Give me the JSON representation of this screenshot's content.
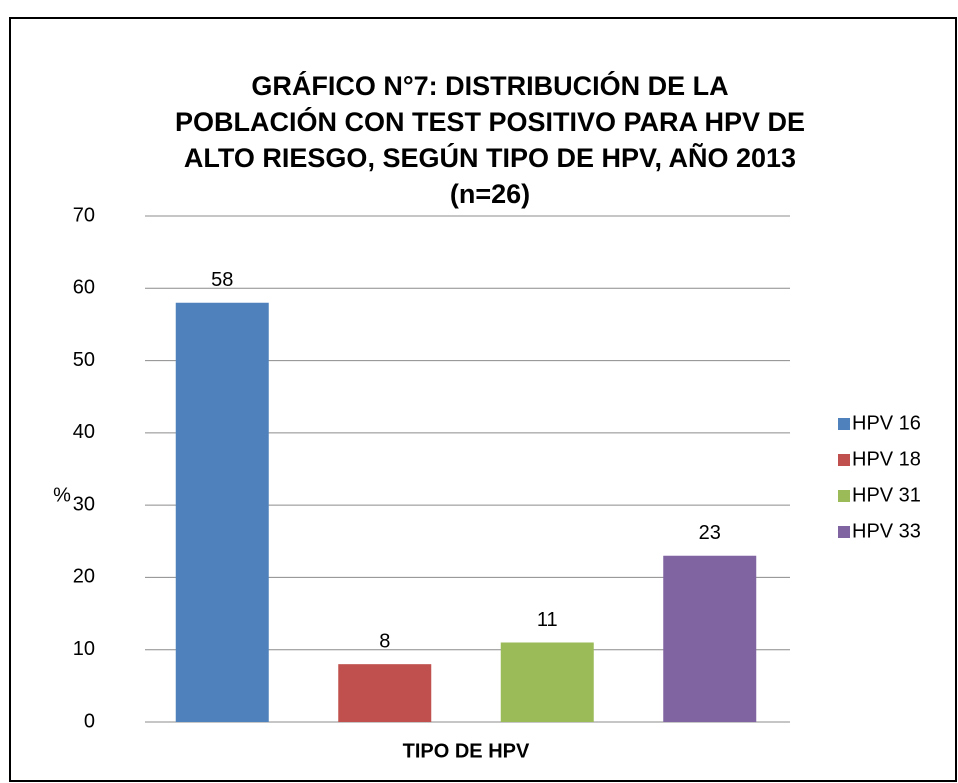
{
  "chart_data": {
    "type": "bar",
    "title": [
      "GRÁFICO N°7: DISTRIBUCIÓN DE LA",
      "POBLACIÓN CON TEST POSITIVO PARA HPV DE",
      "ALTO RIESGO, SEGÚN TIPO DE HPV, AÑO 2013",
      "(n=26)"
    ],
    "x_label": "TIPO DE HPV",
    "y_label": "%",
    "categories": [
      null
    ],
    "series": [
      {
        "name": "HPV 16",
        "color": "#4f81bd",
        "values": [
          58
        ]
      },
      {
        "name": "HPV 18",
        "color": "#c0504d",
        "values": [
          8
        ]
      },
      {
        "name": "HPV 31",
        "color": "#9bbb59",
        "values": [
          11
        ]
      },
      {
        "name": "HPV 33",
        "color": "#8064a2",
        "values": [
          23
        ]
      }
    ],
    "ylim": [
      0,
      70
    ],
    "yticks": [
      0,
      10,
      20,
      30,
      40,
      50,
      60,
      70
    ],
    "grid": true,
    "legend": "right"
  }
}
